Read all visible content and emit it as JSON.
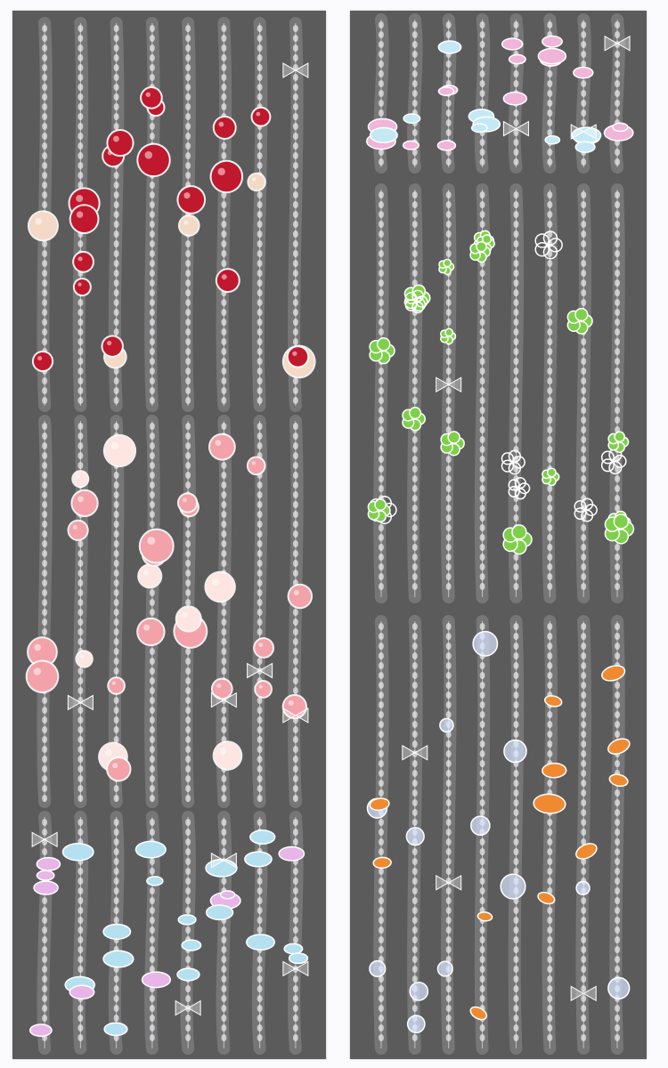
{
  "colors": {
    "background": "#fbfbfd",
    "sheet": "#5b5b5b",
    "bead": "#e6e6ea",
    "outline": "#f4f4f4"
  },
  "sheets": [
    {
      "sections": [
        {
          "motif": "cherry-apple-icon",
          "accent": "#c0182c",
          "accent2": "#f3d9c6",
          "strands": 8
        },
        {
          "motif": "peach-icon",
          "accent": "#f2a2a8",
          "accent2": "#fde6e2",
          "strands": 8
        },
        {
          "motif": "candy-icon",
          "accent": "#e7b5e8",
          "accent2": "#b5e0f0",
          "strands": 8
        }
      ]
    },
    {
      "sections": [
        {
          "motif": "candy-icon",
          "accent": "#f0b5d8",
          "accent2": "#c5e8f5",
          "strands": 8
        },
        {
          "motif": "clover-flower-icon",
          "accent": "#7ed04a",
          "accent2": "#ffffff",
          "strands": 8
        },
        {
          "motif": "goldfish-bubble-icon",
          "accent": "#f08a30",
          "accent2": "#d8e6ff",
          "strands": 8
        }
      ]
    }
  ]
}
